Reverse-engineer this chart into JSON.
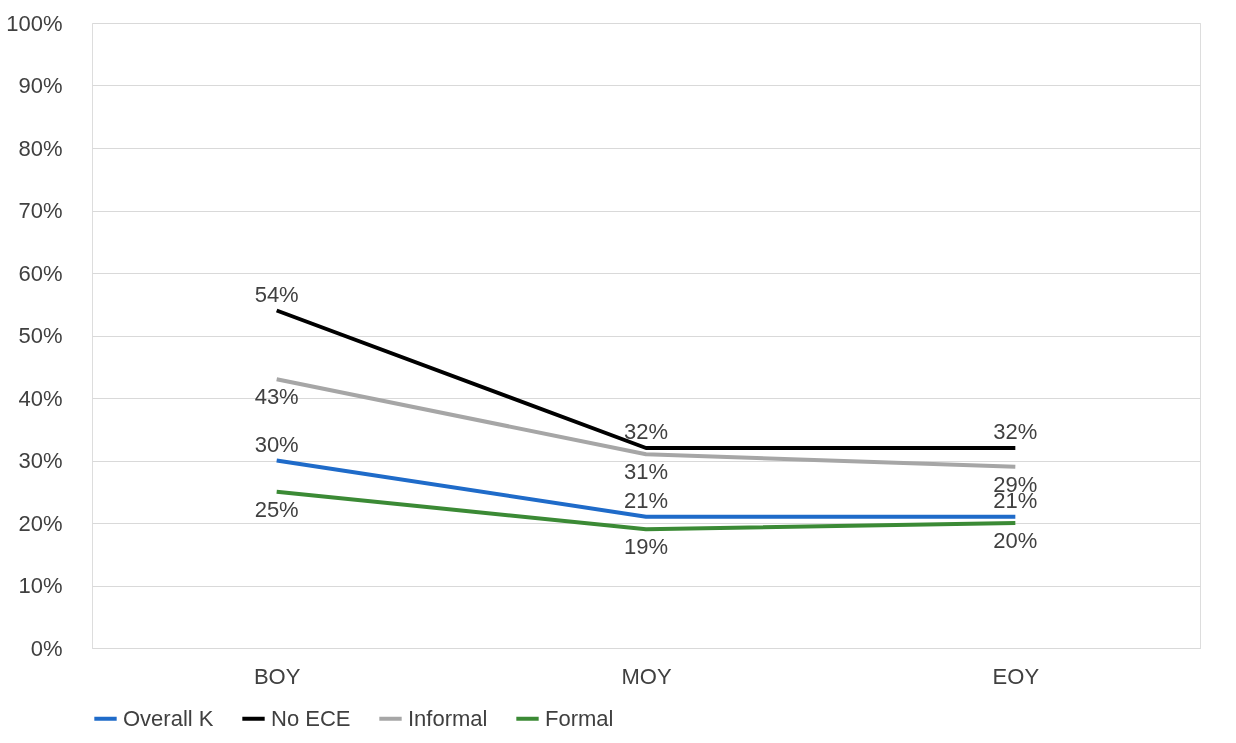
{
  "chart_data": {
    "type": "line",
    "categories": [
      "BOY",
      "MOY",
      "EOY"
    ],
    "series": [
      {
        "name": "Overall K",
        "color": "#1f6bc9",
        "values": [
          30,
          21,
          21
        ],
        "value_labels": [
          "30%",
          "21%",
          "21%"
        ]
      },
      {
        "name": "No ECE",
        "color": "#000000",
        "values": [
          54,
          32,
          32
        ],
        "value_labels": [
          "54%",
          "32%",
          "32%"
        ]
      },
      {
        "name": "Informal",
        "color": "#a6a6a6",
        "values": [
          43,
          31,
          29
        ],
        "value_labels": [
          "43%",
          "31%",
          "29%"
        ]
      },
      {
        "name": "Formal",
        "color": "#3b8a35",
        "values": [
          25,
          19,
          20
        ],
        "value_labels": [
          "25%",
          "19%",
          "20%"
        ]
      }
    ],
    "ylim": [
      0,
      100
    ],
    "yticks": [
      {
        "value": 0,
        "label": "0%"
      },
      {
        "value": 10,
        "label": "10%"
      },
      {
        "value": 20,
        "label": "20%"
      },
      {
        "value": 30,
        "label": "30%"
      },
      {
        "value": 40,
        "label": "40%"
      },
      {
        "value": 50,
        "label": "50%"
      },
      {
        "value": 60,
        "label": "60%"
      },
      {
        "value": 70,
        "label": "70%"
      },
      {
        "value": 80,
        "label": "80%"
      },
      {
        "value": 90,
        "label": "90%"
      },
      {
        "value": 100,
        "label": "100%"
      }
    ],
    "grid": "y",
    "legend": "bottom",
    "marker": "none",
    "line_style": "solid"
  }
}
